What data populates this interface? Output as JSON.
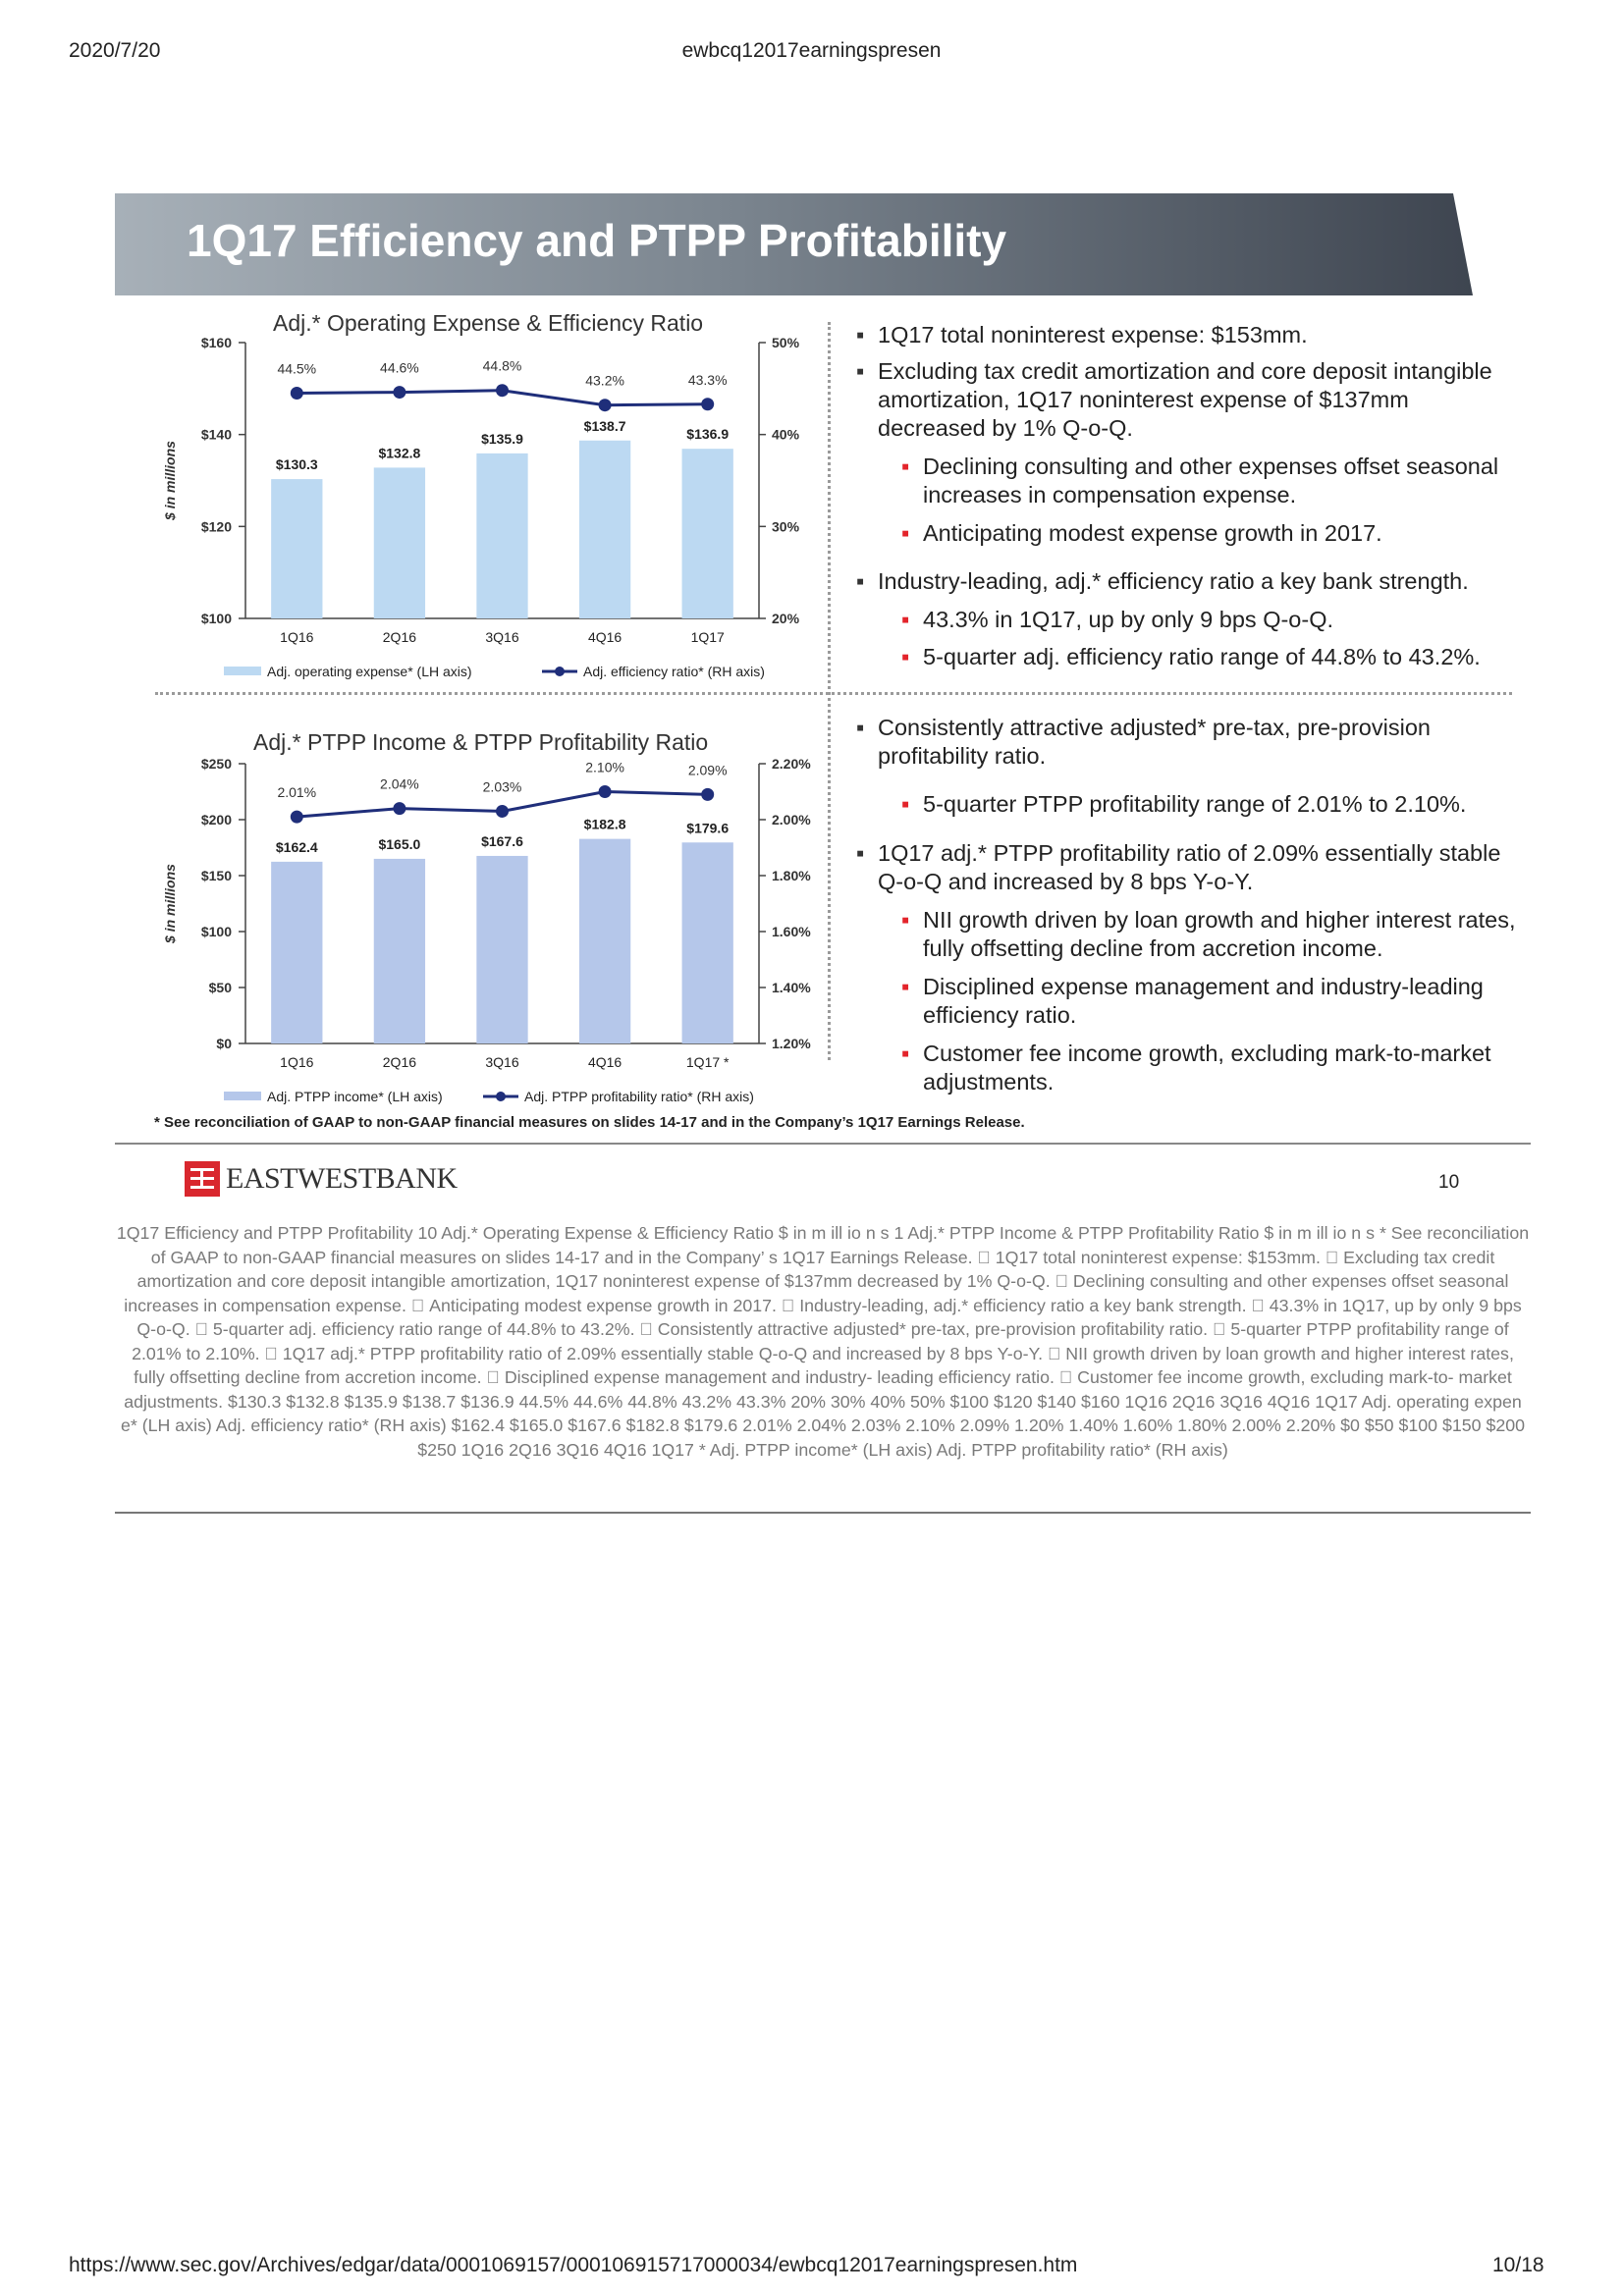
{
  "print_header": {
    "date": "2020/7/20",
    "doc": "ewbcq12017earningspresen"
  },
  "slide": {
    "title": "1Q17 Efficiency and PTPP Profitability",
    "footnote": "* See reconciliation of GAAP to non-GAAP financial measures on slides 14-17 and in the Company’s 1Q17 Earnings Release.",
    "logo_text": "EASTWESTBANK",
    "slide_number": "10"
  },
  "bullets": {
    "top": [
      {
        "level": 1,
        "text": "1Q17 total noninterest expense: $153mm."
      },
      {
        "level": 1,
        "text": "Excluding tax credit amortization and core deposit intangible amortization, 1Q17 noninterest expense of $137mm decreased by 1% Q-o-Q."
      },
      {
        "level": 2,
        "text": "Declining consulting and other expenses offset seasonal increases in compensation expense."
      },
      {
        "level": 2,
        "text": "Anticipating modest expense growth in 2017."
      },
      {
        "level": 1,
        "text": "Industry-leading, adj.* efficiency ratio a key bank strength."
      },
      {
        "level": 2,
        "text": "43.3% in 1Q17, up by only 9 bps Q-o-Q."
      },
      {
        "level": 2,
        "text": "5-quarter adj. efficiency ratio range of 44.8% to 43.2%."
      }
    ],
    "bottom": [
      {
        "level": 1,
        "text": "Consistently attractive adjusted* pre-tax, pre-provision profitability ratio."
      },
      {
        "level": 2,
        "text": "5-quarter PTPP profitability range of 2.01% to 2.10%."
      },
      {
        "level": 1,
        "text": "1Q17 adj.* PTPP profitability ratio of 2.09% essentially stable Q-o-Q and increased by 8 bps Y-o-Y."
      },
      {
        "level": 2,
        "text": "NII growth driven by loan growth and higher interest rates, fully offsetting decline from accretion income."
      },
      {
        "level": 2,
        "text": "Disciplined expense management and industry-leading efficiency ratio."
      },
      {
        "level": 2,
        "text": "Customer fee income growth, excluding mark-to-market adjustments."
      }
    ]
  },
  "chart_data": [
    {
      "type": "bar",
      "title": "Adj.* Operating Expense & Efficiency Ratio",
      "ylabel": "$ in millions",
      "categories": [
        "1Q16",
        "2Q16",
        "3Q16",
        "4Q16",
        "1Q17"
      ],
      "series": [
        {
          "name": "Adj. operating expense* (LH axis)",
          "kind": "bar",
          "axis": "left",
          "values": [
            130.3,
            132.8,
            135.9,
            138.7,
            136.9
          ],
          "labels": [
            "$130.3",
            "$132.8",
            "$135.9",
            "$138.7",
            "$136.9"
          ]
        },
        {
          "name": "Adj. efficiency ratio* (RH axis)",
          "kind": "line",
          "axis": "right",
          "values": [
            44.5,
            44.6,
            44.8,
            43.2,
            43.3
          ],
          "labels": [
            "44.5%",
            "44.6%",
            "44.8%",
            "43.2%",
            "43.3%"
          ]
        }
      ],
      "ylim_left": [
        100,
        160
      ],
      "yticks_left": [
        100,
        120,
        140,
        160
      ],
      "ytick_labels_left": [
        "$100",
        "$120",
        "$140",
        "$160"
      ],
      "ylim_right": [
        20,
        50
      ],
      "yticks_right": [
        20,
        30,
        40,
        50
      ],
      "ytick_labels_right": [
        "20%",
        "30%",
        "40%",
        "50%"
      ],
      "bar_color": "#bcd9f2",
      "line_color": "#1f2e7a",
      "legend_position": "bottom",
      "grid": false
    },
    {
      "type": "bar",
      "title": "Adj.* PTPP Income & PTPP Profitability Ratio",
      "ylabel": "$ in millions",
      "categories": [
        "1Q16",
        "2Q16",
        "3Q16",
        "4Q16",
        "1Q17 *"
      ],
      "series": [
        {
          "name": "Adj. PTPP income* (LH axis)",
          "kind": "bar",
          "axis": "left",
          "values": [
            162.4,
            165.0,
            167.6,
            182.8,
            179.6
          ],
          "labels": [
            "$162.4",
            "$165.0",
            "$167.6",
            "$182.8",
            "$179.6"
          ]
        },
        {
          "name": "Adj. PTPP profitability ratio* (RH axis)",
          "kind": "line",
          "axis": "right",
          "values": [
            2.01,
            2.04,
            2.03,
            2.1,
            2.09
          ],
          "labels": [
            "2.01%",
            "2.04%",
            "2.03%",
            "2.10%",
            "2.09%"
          ]
        }
      ],
      "ylim_left": [
        0,
        250
      ],
      "yticks_left": [
        0,
        50,
        100,
        150,
        200,
        250
      ],
      "ytick_labels_left": [
        "$0",
        "$50",
        "$100",
        "$150",
        "$200",
        "$250"
      ],
      "ylim_right": [
        1.2,
        2.2
      ],
      "yticks_right": [
        1.2,
        1.4,
        1.6,
        1.8,
        2.0,
        2.2
      ],
      "ytick_labels_right": [
        "1.20%",
        "1.40%",
        "1.60%",
        "1.80%",
        "2.00%",
        "2.20%"
      ],
      "bar_color": "#b5c7ea",
      "line_color": "#1f2e7a",
      "legend_position": "bottom",
      "grid": false
    }
  ],
  "extracted_text": "1Q17 Efficiency and PTPP Profitability  10  Adj.* Operating Expense & Efficiency Ratio  $ in m ill io n s  1  Adj.* PTPP Income & PTPP Profitability Ratio  $ in m ill io n s  * See reconciliation of GAAP to non-GAAP financial measures on slides 14-17 and in the Company’  s 1Q17 Earnings Release.   1Q17 total noninterest expense: $153mm.   Excluding tax credit amortization and core deposit  intangible amortization, 1Q17 noninterest expense of  $137mm decreased by 1% Q-o-Q.   Declining consulting and other expenses offset  seasonal increases in compensation expense.   Anticipating modest expense growth in 2017.   Industry-leading, adj.* efficiency ratio a key bank strength.   43.3% in 1Q17, up by only 9 bps Q-o-Q.   5-quarter adj. efficiency ratio range of 44.8% to 43.2%.    Consistently attractive adjusted* pre-tax, pre-provision  profitability ratio.   5-quarter PTPP profitability range of 2.01% to 2.10%.   1Q17 adj.* PTPP profitability ratio of 2.09% essentially  stable Q-o-Q and increased by 8 bps Y-o-Y.   NII growth driven by loan growth and higher interest  rates, fully offsetting decline from accretion income.   Disciplined expense management and industry- leading efficiency ratio.   Customer fee income growth, excluding mark-to- market adjustments.  $130.3  $132.8  $135.9 $138.7 $136.9  44.5% 44.6% 44.8% 43.2% 43.3% 20% 30% 40% 50% $100 $120 $140 $160 1Q16 2Q16 3Q16 4Q16 1Q17 Adj. operating expen e* (LH axis) Adj. efficiency ratio* (RH axis) $162.4 $165.0 $167.6  $182.8 $179.6  2.01% 2.04% 2.03% 2.10% 2.09% 1.20% 1.40% 1.60% 1.80% 2.00% 2.20% $0 $50 $100 $150 $200 $250 1Q16 2Q16 3Q16 4Q16 1Q17 * Adj. PTPP income* (LH axis) Adj. PTPP profitability ratio* (RH axis)",
  "print_footer": {
    "url": "https://www.sec.gov/Archives/edgar/data/0001069157/000106915717000034/ewbcq12017earningspresen.htm",
    "page": "10/18"
  }
}
